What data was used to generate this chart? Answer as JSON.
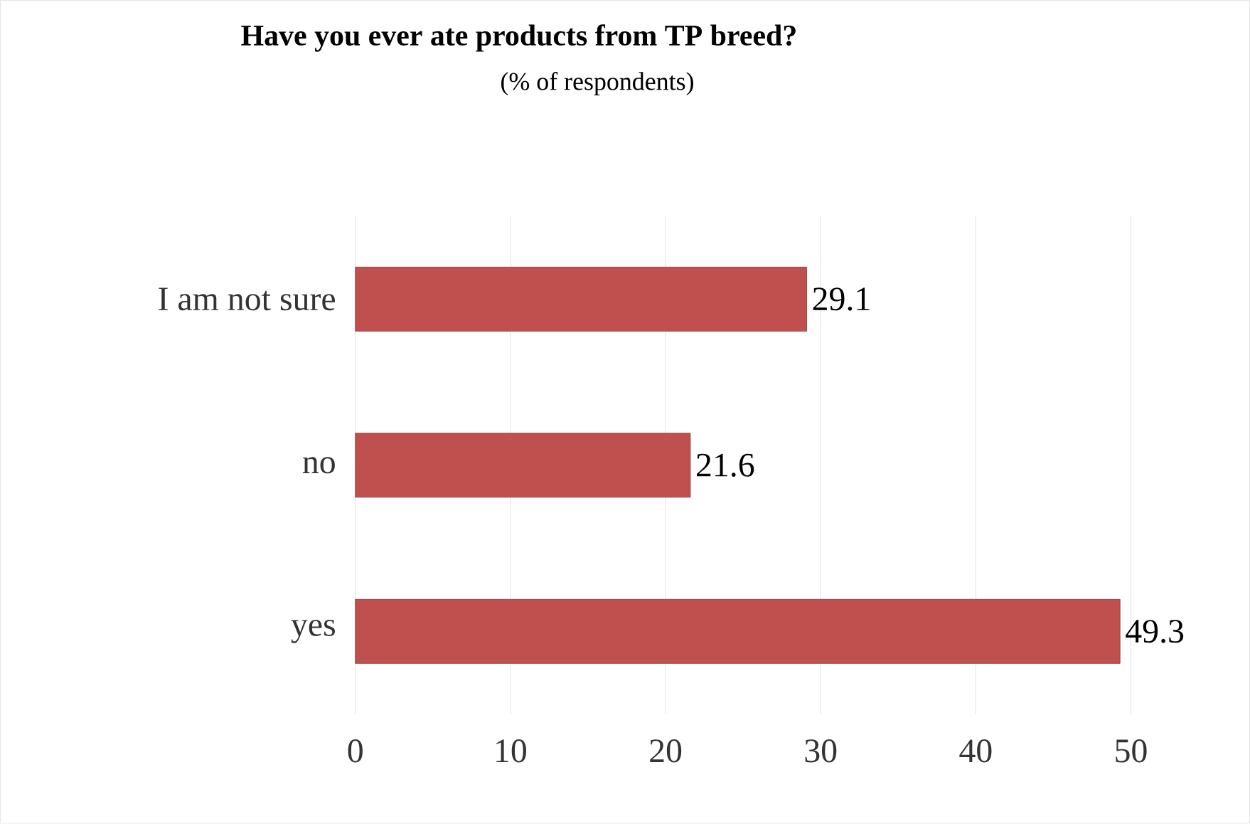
{
  "chart_data": {
    "type": "bar",
    "orientation": "horizontal",
    "title": "**Have you ever ate products from TP breed**?",
    "subtitle": "(% of respondents)",
    "categories": [
      "I am not sure",
      "no",
      "yes"
    ],
    "values": [
      29.1,
      21.6,
      49.3
    ],
    "color": "#c0504d",
    "data_labels": true,
    "xlim": [
      0,
      50
    ],
    "xticks": [
      0,
      10,
      20,
      30,
      40,
      50
    ],
    "grid": "x"
  }
}
